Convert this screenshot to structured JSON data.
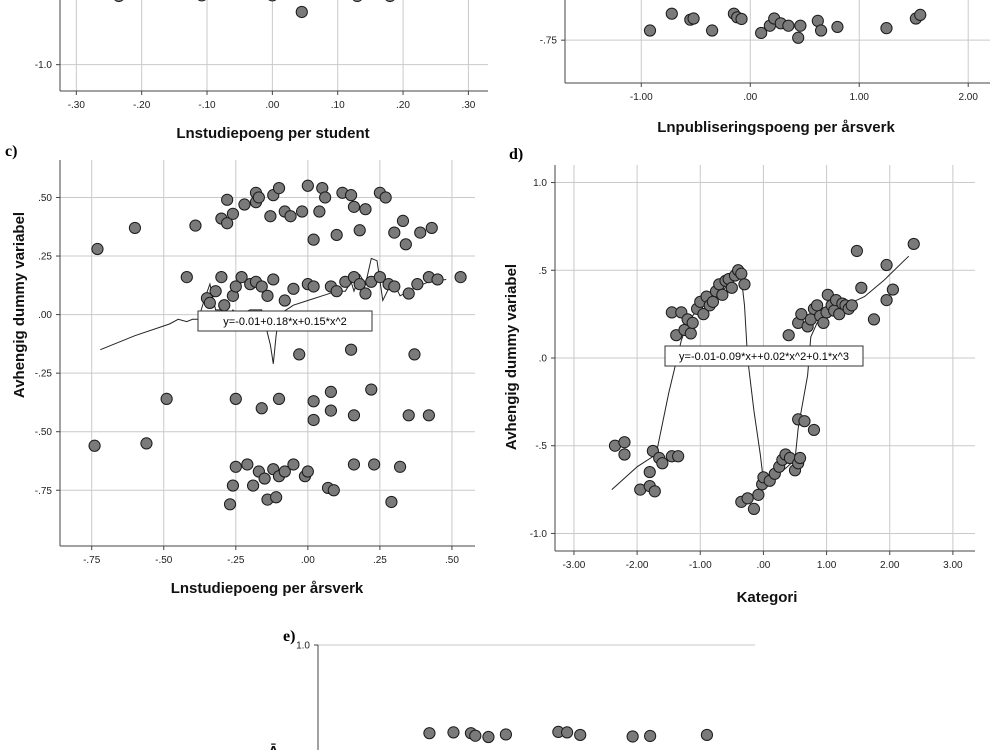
{
  "chart_data": [
    {
      "id": "a",
      "type": "scatter",
      "panel_label": "",
      "xlabel": "Lnstudiepoeng per student",
      "ylabel": "",
      "x_ticks": [
        -0.3,
        -0.2,
        -0.1,
        0.0,
        0.1,
        0.2,
        0.3
      ],
      "x_tick_labels": [
        "-.30",
        "-.20",
        "-.10",
        ".00",
        ".10",
        ".20",
        ".30"
      ],
      "y_ticks": [
        -1.0
      ],
      "y_tick_labels": [
        "-1.0"
      ],
      "xlim": [
        -0.325,
        0.33
      ],
      "ylim": [
        -1.14,
        -0.55
      ],
      "grid": "vertical",
      "points": [
        [
          -0.24,
          -0.585
        ],
        [
          -0.235,
          -0.635
        ],
        [
          -0.218,
          -0.588
        ],
        [
          -0.18,
          -0.585
        ],
        [
          -0.11,
          -0.565
        ],
        [
          -0.108,
          -0.632
        ],
        [
          -0.04,
          -0.592
        ],
        [
          -0.038,
          -0.602
        ],
        [
          0.0,
          -0.565
        ],
        [
          0.0,
          -0.632
        ],
        [
          0.015,
          -0.59
        ],
        [
          0.03,
          -0.6
        ],
        [
          0.045,
          -0.72
        ],
        [
          0.08,
          -0.555
        ],
        [
          0.13,
          -0.635
        ],
        [
          0.18,
          -0.635
        ],
        [
          0.185,
          -0.595
        ],
        [
          0.2,
          -0.575
        ]
      ],
      "fit_line": [],
      "equation": ""
    },
    {
      "id": "b",
      "type": "scatter",
      "panel_label": "",
      "xlabel": "Lnpubliseringspoeng per årsverk",
      "ylabel": "",
      "x_ticks": [
        -1.0,
        0.0,
        1.0,
        2.0
      ],
      "x_tick_labels": [
        "-1.00",
        ".00",
        "1.00",
        "2.00"
      ],
      "y_ticks": [
        -0.75
      ],
      "y_tick_labels": [
        "-.75"
      ],
      "xlim": [
        -1.7,
        2.2
      ],
      "ylim": [
        -0.928,
        -0.5
      ],
      "grid": "both",
      "points": [
        [
          -0.92,
          -0.71
        ],
        [
          -0.72,
          -0.64
        ],
        [
          -0.55,
          -0.665
        ],
        [
          -0.52,
          -0.66
        ],
        [
          -0.35,
          -0.71
        ],
        [
          -0.15,
          -0.64
        ],
        [
          -0.12,
          -0.655
        ],
        [
          -0.08,
          -0.662
        ],
        [
          0.1,
          -0.72
        ],
        [
          0.18,
          -0.69
        ],
        [
          0.22,
          -0.66
        ],
        [
          0.28,
          -0.68
        ],
        [
          0.35,
          -0.69
        ],
        [
          0.44,
          -0.74
        ],
        [
          0.46,
          -0.69
        ],
        [
          0.62,
          -0.67
        ],
        [
          0.65,
          -0.71
        ],
        [
          0.8,
          -0.695
        ],
        [
          1.25,
          -0.7
        ],
        [
          1.52,
          -0.66
        ],
        [
          1.56,
          -0.645
        ]
      ],
      "fit_line": [],
      "equation": ""
    },
    {
      "id": "c",
      "type": "scatter",
      "panel_label": "c)",
      "xlabel": "Lnstudiepoeng per årsverk",
      "ylabel": "Avhengig dummy variabel",
      "x_ticks": [
        -0.75,
        -0.5,
        -0.25,
        0.0,
        0.25,
        0.5
      ],
      "x_tick_labels": [
        "-.75",
        "-.50",
        "-.25",
        ".00",
        ".25",
        ".50"
      ],
      "y_ticks": [
        -0.75,
        -0.5,
        -0.25,
        0.0,
        0.25,
        0.5
      ],
      "y_tick_labels": [
        "-.75",
        "-.50",
        "-.25",
        ".00",
        ".25",
        ".50"
      ],
      "xlim": [
        -0.86,
        0.58
      ],
      "ylim": [
        -0.988,
        0.66
      ],
      "grid": "both",
      "points": [
        [
          -0.73,
          0.28
        ],
        [
          -0.6,
          0.37
        ],
        [
          -0.39,
          0.38
        ],
        [
          -0.28,
          0.49
        ],
        [
          -0.3,
          0.41
        ],
        [
          -0.28,
          0.39
        ],
        [
          -0.26,
          0.43
        ],
        [
          -0.22,
          0.47
        ],
        [
          -0.18,
          0.48
        ],
        [
          -0.18,
          0.52
        ],
        [
          -0.17,
          0.5
        ],
        [
          -0.13,
          0.42
        ],
        [
          -0.12,
          0.51
        ],
        [
          -0.1,
          0.54
        ],
        [
          -0.08,
          0.44
        ],
        [
          -0.06,
          0.42
        ],
        [
          -0.02,
          0.44
        ],
        [
          0.0,
          0.55
        ],
        [
          0.02,
          0.32
        ],
        [
          0.04,
          0.44
        ],
        [
          0.05,
          0.54
        ],
        [
          0.06,
          0.5
        ],
        [
          0.1,
          0.34
        ],
        [
          0.12,
          0.52
        ],
        [
          0.15,
          0.51
        ],
        [
          0.16,
          0.46
        ],
        [
          0.18,
          0.36
        ],
        [
          0.2,
          0.45
        ],
        [
          0.25,
          0.52
        ],
        [
          0.27,
          0.5
        ],
        [
          0.3,
          0.35
        ],
        [
          0.33,
          0.4
        ],
        [
          0.34,
          0.3
        ],
        [
          0.39,
          0.35
        ],
        [
          0.43,
          0.37
        ],
        [
          -0.42,
          0.16
        ],
        [
          -0.35,
          0.07
        ],
        [
          -0.34,
          0.05
        ],
        [
          -0.32,
          0.1
        ],
        [
          -0.3,
          0.16
        ],
        [
          -0.29,
          0.04
        ],
        [
          -0.26,
          0.08
        ],
        [
          -0.25,
          0.12
        ],
        [
          -0.23,
          0.16
        ],
        [
          -0.2,
          0.13
        ],
        [
          -0.18,
          0.14
        ],
        [
          -0.16,
          0.12
        ],
        [
          -0.14,
          0.08
        ],
        [
          -0.12,
          0.15
        ],
        [
          -0.08,
          0.06
        ],
        [
          -0.05,
          0.11
        ],
        [
          0.0,
          0.13
        ],
        [
          0.02,
          0.12
        ],
        [
          0.08,
          0.12
        ],
        [
          0.1,
          0.1
        ],
        [
          0.13,
          0.14
        ],
        [
          0.16,
          0.16
        ],
        [
          0.18,
          0.13
        ],
        [
          0.2,
          0.09
        ],
        [
          0.22,
          0.14
        ],
        [
          0.25,
          0.16
        ],
        [
          0.28,
          0.13
        ],
        [
          0.3,
          0.12
        ],
        [
          0.35,
          0.09
        ],
        [
          0.38,
          0.13
        ],
        [
          0.42,
          0.16
        ],
        [
          0.45,
          0.15
        ],
        [
          0.53,
          0.16
        ],
        [
          -0.74,
          -0.56
        ],
        [
          -0.56,
          -0.55
        ],
        [
          -0.49,
          -0.36
        ],
        [
          -0.25,
          -0.36
        ],
        [
          -0.16,
          -0.4
        ],
        [
          -0.1,
          -0.36
        ],
        [
          -0.03,
          -0.17
        ],
        [
          0.02,
          -0.37
        ],
        [
          0.02,
          -0.45
        ],
        [
          0.08,
          -0.41
        ],
        [
          0.08,
          -0.33
        ],
        [
          0.16,
          -0.43
        ],
        [
          0.15,
          -0.15
        ],
        [
          0.22,
          -0.32
        ],
        [
          0.35,
          -0.43
        ],
        [
          0.37,
          -0.17
        ],
        [
          0.42,
          -0.43
        ],
        [
          -0.27,
          -0.81
        ],
        [
          -0.26,
          -0.73
        ],
        [
          -0.25,
          -0.65
        ],
        [
          -0.21,
          -0.64
        ],
        [
          -0.19,
          -0.73
        ],
        [
          -0.17,
          -0.67
        ],
        [
          -0.15,
          -0.7
        ],
        [
          -0.14,
          -0.79
        ],
        [
          -0.12,
          -0.66
        ],
        [
          -0.11,
          -0.78
        ],
        [
          -0.1,
          -0.69
        ],
        [
          -0.08,
          -0.67
        ],
        [
          -0.05,
          -0.64
        ],
        [
          -0.01,
          -0.69
        ],
        [
          0.0,
          -0.67
        ],
        [
          0.07,
          -0.74
        ],
        [
          0.09,
          -0.75
        ],
        [
          0.16,
          -0.64
        ],
        [
          0.23,
          -0.64
        ],
        [
          0.29,
          -0.8
        ],
        [
          0.32,
          -0.65
        ]
      ],
      "fit_line": [
        [
          -0.72,
          -0.15
        ],
        [
          -0.6,
          -0.09
        ],
        [
          -0.48,
          -0.04
        ],
        [
          -0.45,
          -0.02
        ],
        [
          -0.42,
          -0.03
        ],
        [
          -0.4,
          -0.02
        ],
        [
          -0.38,
          -0.02
        ],
        [
          -0.36,
          0.06
        ],
        [
          -0.34,
          0.13
        ],
        [
          -0.32,
          0.02
        ],
        [
          -0.3,
          0.02
        ],
        [
          -0.28,
          -0.01
        ],
        [
          -0.26,
          0.02
        ],
        [
          -0.24,
          0.0
        ],
        [
          -0.2,
          0.02
        ],
        [
          -0.16,
          0.02
        ],
        [
          -0.13,
          -0.13
        ],
        [
          -0.12,
          -0.21
        ],
        [
          -0.11,
          -0.09
        ],
        [
          -0.1,
          0.0
        ],
        [
          -0.05,
          0.04
        ],
        [
          0.0,
          0.06
        ],
        [
          0.05,
          0.08
        ],
        [
          0.1,
          0.1
        ],
        [
          0.13,
          0.1
        ],
        [
          0.15,
          0.14
        ],
        [
          0.16,
          0.1
        ],
        [
          0.18,
          0.17
        ],
        [
          0.2,
          0.13
        ],
        [
          0.22,
          0.24
        ],
        [
          0.24,
          0.23
        ],
        [
          0.26,
          0.06
        ],
        [
          0.28,
          0.11
        ],
        [
          0.3,
          0.13
        ],
        [
          0.32,
          0.08
        ],
        [
          0.35,
          0.1
        ],
        [
          0.38,
          0.12
        ],
        [
          0.42,
          0.14
        ],
        [
          0.48,
          0.15
        ]
      ],
      "equation": "y=-0.01+0.18*x+0.15*x^2"
    },
    {
      "id": "d",
      "type": "scatter",
      "panel_label": "d)",
      "xlabel": "Kategori",
      "ylabel": "Avhengig dummy variabel",
      "x_ticks": [
        -3.0,
        -2.0,
        -1.0,
        0.0,
        1.0,
        2.0,
        3.0
      ],
      "x_tick_labels": [
        "-3.00",
        "-2.00",
        "-1.00",
        ".00",
        "1.00",
        "2.00",
        "3.00"
      ],
      "y_ticks": [
        -1.0,
        -0.5,
        0.0,
        0.5,
        1.0
      ],
      "y_tick_labels": [
        "-1.0",
        "-.5",
        ".0",
        ".5",
        "1.0"
      ],
      "xlim": [
        -3.3,
        3.35
      ],
      "ylim": [
        -1.1,
        1.1
      ],
      "grid": "both",
      "points": [
        [
          -2.35,
          -0.5
        ],
        [
          -2.2,
          -0.48
        ],
        [
          -2.2,
          -0.55
        ],
        [
          -1.95,
          -0.75
        ],
        [
          -1.8,
          -0.65
        ],
        [
          -1.8,
          -0.73
        ],
        [
          -1.72,
          -0.76
        ],
        [
          -1.75,
          -0.53
        ],
        [
          -1.65,
          -0.57
        ],
        [
          -1.6,
          -0.6
        ],
        [
          -1.45,
          -0.56
        ],
        [
          -1.35,
          -0.56
        ],
        [
          -1.45,
          0.26
        ],
        [
          -1.38,
          0.13
        ],
        [
          -1.3,
          0.26
        ],
        [
          -1.25,
          0.16
        ],
        [
          -1.2,
          0.22
        ],
        [
          -1.15,
          0.14
        ],
        [
          -1.12,
          0.2
        ],
        [
          -1.05,
          0.28
        ],
        [
          -1.0,
          0.32
        ],
        [
          -0.95,
          0.25
        ],
        [
          -0.9,
          0.35
        ],
        [
          -0.85,
          0.3
        ],
        [
          -0.8,
          0.32
        ],
        [
          -0.75,
          0.38
        ],
        [
          -0.7,
          0.42
        ],
        [
          -0.65,
          0.36
        ],
        [
          -0.6,
          0.44
        ],
        [
          -0.55,
          0.45
        ],
        [
          -0.5,
          0.4
        ],
        [
          -0.45,
          0.47
        ],
        [
          -0.4,
          0.5
        ],
        [
          -0.35,
          0.48
        ],
        [
          -0.3,
          0.42
        ],
        [
          -0.35,
          -0.82
        ],
        [
          -0.25,
          -0.8
        ],
        [
          -0.15,
          -0.86
        ],
        [
          -0.08,
          -0.78
        ],
        [
          -0.02,
          -0.72
        ],
        [
          0.0,
          -0.68
        ],
        [
          0.1,
          -0.7
        ],
        [
          0.18,
          -0.66
        ],
        [
          0.25,
          -0.62
        ],
        [
          0.3,
          -0.58
        ],
        [
          0.35,
          -0.55
        ],
        [
          0.42,
          -0.57
        ],
        [
          0.5,
          -0.64
        ],
        [
          0.55,
          -0.6
        ],
        [
          0.58,
          -0.57
        ],
        [
          0.55,
          -0.35
        ],
        [
          0.65,
          -0.36
        ],
        [
          0.8,
          -0.41
        ],
        [
          0.4,
          0.13
        ],
        [
          0.55,
          0.2
        ],
        [
          0.6,
          0.25
        ],
        [
          0.7,
          0.18
        ],
        [
          0.75,
          0.22
        ],
        [
          0.8,
          0.28
        ],
        [
          0.85,
          0.3
        ],
        [
          0.9,
          0.24
        ],
        [
          0.95,
          0.2
        ],
        [
          1.0,
          0.26
        ],
        [
          1.02,
          0.36
        ],
        [
          1.08,
          0.3
        ],
        [
          1.12,
          0.27
        ],
        [
          1.15,
          0.33
        ],
        [
          1.2,
          0.25
        ],
        [
          1.25,
          0.31
        ],
        [
          1.3,
          0.3
        ],
        [
          1.35,
          0.28
        ],
        [
          1.4,
          0.3
        ],
        [
          1.48,
          0.61
        ],
        [
          1.55,
          0.4
        ],
        [
          1.75,
          0.22
        ],
        [
          1.95,
          0.33
        ],
        [
          1.95,
          0.53
        ],
        [
          2.05,
          0.39
        ],
        [
          2.38,
          0.65
        ]
      ],
      "fit_line": [
        [
          -2.4,
          -0.75
        ],
        [
          -2.0,
          -0.62
        ],
        [
          -1.7,
          -0.55
        ],
        [
          -1.5,
          -0.2
        ],
        [
          -1.3,
          0.1
        ],
        [
          -1.2,
          0.2
        ],
        [
          -1.1,
          0.25
        ],
        [
          -0.9,
          0.32
        ],
        [
          -0.6,
          0.4
        ],
        [
          -0.5,
          0.46
        ],
        [
          -0.42,
          0.48
        ],
        [
          -0.35,
          0.46
        ],
        [
          -0.3,
          0.3
        ],
        [
          -0.25,
          0.0
        ],
        [
          -0.15,
          -0.3
        ],
        [
          -0.05,
          -0.55
        ],
        [
          0.0,
          -0.7
        ],
        [
          0.15,
          -0.68
        ],
        [
          0.35,
          -0.63
        ],
        [
          0.5,
          -0.58
        ],
        [
          0.55,
          -0.4
        ],
        [
          0.6,
          -0.3
        ],
        [
          0.7,
          -0.1
        ],
        [
          0.75,
          0.12
        ],
        [
          0.85,
          0.2
        ],
        [
          1.0,
          0.27
        ],
        [
          1.3,
          0.3
        ],
        [
          1.6,
          0.35
        ],
        [
          1.9,
          0.44
        ],
        [
          2.3,
          0.58
        ]
      ],
      "equation": "y=-0.01-0.09*x++0.02*x^2+0.1*x^3"
    },
    {
      "id": "e",
      "type": "scatter",
      "panel_label": "e)",
      "xlabel": "",
      "ylabel": "",
      "x_ticks": [],
      "x_tick_labels": [],
      "y_ticks": [
        1.0
      ],
      "y_tick_labels": [
        "1.0"
      ],
      "xlim": [
        0,
        1
      ],
      "ylim": [
        0.55,
        1.0
      ],
      "grid": "both",
      "points": [
        [
          0.255,
          0.655
        ],
        [
          0.31,
          0.658
        ],
        [
          0.35,
          0.655
        ],
        [
          0.36,
          0.645
        ],
        [
          0.39,
          0.64
        ],
        [
          0.43,
          0.65
        ],
        [
          0.55,
          0.66
        ],
        [
          0.57,
          0.658
        ],
        [
          0.6,
          0.648
        ],
        [
          0.72,
          0.642
        ],
        [
          0.76,
          0.644
        ],
        [
          0.89,
          0.648
        ]
      ],
      "fit_line": [],
      "equation": ""
    }
  ]
}
